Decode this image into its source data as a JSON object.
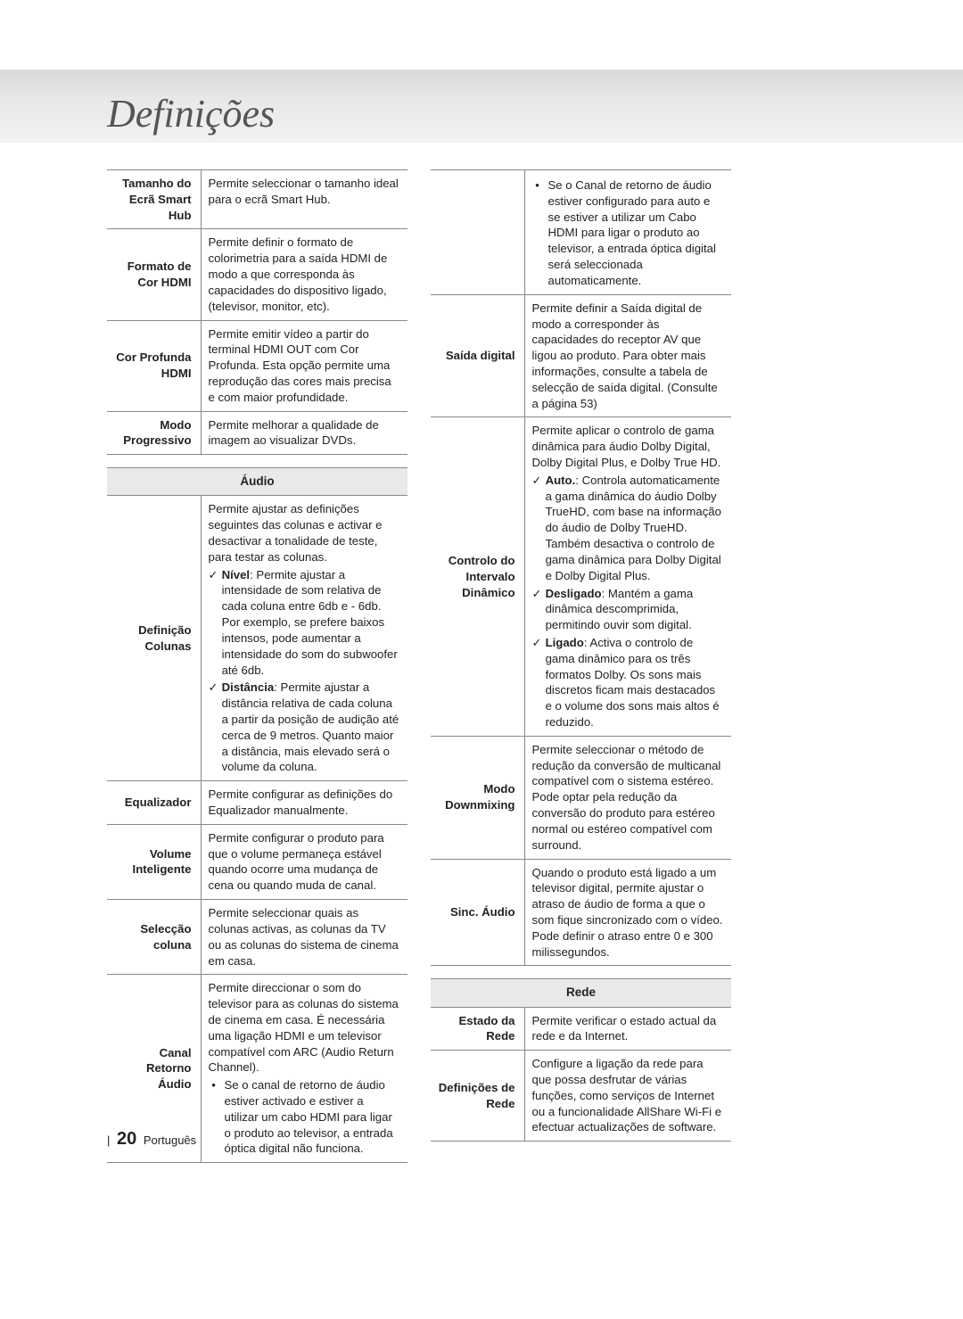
{
  "page": {
    "title": "Definições",
    "number": "20",
    "language": "Português"
  },
  "left": {
    "displayRows": [
      {
        "label": "Tamanho do\nEcrã Smart Hub",
        "desc": "Permite seleccionar o tamanho ideal para o ecrã Smart Hub."
      },
      {
        "label": "Formato de\nCor HDMI",
        "desc": "Permite definir o formato de colorimetria para a saída HDMI de modo a que corresponda às capacidades do dispositivo ligado, (televisor, monitor, etc)."
      },
      {
        "label": "Cor Profunda\nHDMI",
        "desc": "Permite emitir vídeo a partir do terminal HDMI OUT com Cor Profunda. Esta opção permite uma reprodução das cores mais precisa e com maior profundidade."
      },
      {
        "label": "Modo\nProgressivo",
        "desc": "Permite melhorar a qualidade de imagem ao visualizar DVDs."
      }
    ],
    "audioHeader": "Áudio",
    "audioRows": [
      {
        "label": "Definição\nColunas",
        "descIntro": "Permite ajustar as definições seguintes das colunas e activar e desactivar a tonalidade de teste, para testar as colunas.",
        "checks": [
          {
            "bold": "Nível",
            "text": ": Permite ajustar a intensidade de som relativa de cada coluna entre 6db e - 6db. Por exemplo, se prefere baixos intensos, pode aumentar a intensidade do som do subwoofer até 6db."
          },
          {
            "bold": "Distância",
            "text": ": Permite ajustar a distância relativa de cada coluna a partir da posição de audição até cerca de 9 metros. Quanto maior a distância, mais elevado será o volume da coluna."
          }
        ]
      },
      {
        "label": "Equalizador",
        "desc": "Permite configurar as definições do Equalizador manualmente."
      },
      {
        "label": "Volume\nInteligente",
        "desc": "Permite configurar o produto para que o volume permaneça estável quando ocorre uma mudança de cena ou quando muda de canal."
      },
      {
        "label": "Selecção\ncoluna",
        "desc": "Permite seleccionar quais as colunas activas, as colunas da TV ou as colunas do sistema de cinema em casa."
      },
      {
        "label": "Canal\nRetorno\nÁudio",
        "descIntro": "Permite direccionar o som do televisor para as colunas do sistema de cinema em casa. É necessária uma ligação HDMI e um televisor compatível com ARC (Audio Return Channel).",
        "bullets": [
          "Se o canal de retorno de áudio estiver activado e estiver a utilizar um cabo HDMI para ligar o produto ao televisor, a entrada óptica digital não funciona."
        ]
      }
    ]
  },
  "right": {
    "audioRows": [
      {
        "label": "",
        "bullets": [
          "Se o Canal de retorno de áudio estiver configurado para auto e se estiver a utilizar um Cabo HDMI para ligar o produto ao televisor, a entrada óptica digital será seleccionada automaticamente."
        ]
      },
      {
        "label": "Saída digital",
        "desc": "Permite definir a Saída digital de modo a corresponder às capacidades do receptor AV que ligou ao produto. Para obter mais informações, consulte a tabela de selecção de saída digital. (Consulte a página 53)"
      },
      {
        "label": "Controlo do\nIntervalo\nDinâmico",
        "descIntro": "Permite aplicar o controlo de gama dinâmica para áudio Dolby Digital, Dolby Digital Plus, e Dolby True HD.",
        "checks": [
          {
            "bold": "Auto.",
            "text": ": Controla automaticamente a gama dinâmica do áudio Dolby TrueHD, com base na informação do áudio de Dolby TrueHD. Também desactiva o controlo de gama dinâmica para Dolby Digital e Dolby Digital Plus."
          },
          {
            "bold": "Desligado",
            "text": ": Mantém a gama dinâmica descomprimida, permitindo ouvir som digital."
          },
          {
            "bold": "Ligado",
            "text": ": Activa o controlo de gama dinâmico para os três formatos Dolby. Os sons mais discretos ficam mais destacados e o volume dos sons mais altos é reduzido."
          }
        ]
      },
      {
        "label": "Modo\nDownmixing",
        "desc": "Permite seleccionar o método de redução da conversão de multicanal compatível com o sistema estéreo. Pode optar pela redução da conversão do produto para estéreo normal ou estéreo compatível com surround."
      },
      {
        "label": "Sinc. Áudio",
        "desc": "Quando o produto está ligado a um televisor digital, permite ajustar o atraso de áudio de forma a que o som fique sincronizado com o vídeo. Pode definir o atraso entre 0 e 300 milissegundos."
      }
    ],
    "networkHeader": "Rede",
    "networkRows": [
      {
        "label": "Estado da\nRede",
        "desc": "Permite verificar o estado actual da rede e da Internet."
      },
      {
        "label": "Definições de\nRede",
        "desc": "Configure a ligação da rede para que possa desfrutar de várias funções, como serviços de Internet ou a funcionalidade AllShare Wi-Fi e efectuar actualizações de software."
      }
    ]
  }
}
